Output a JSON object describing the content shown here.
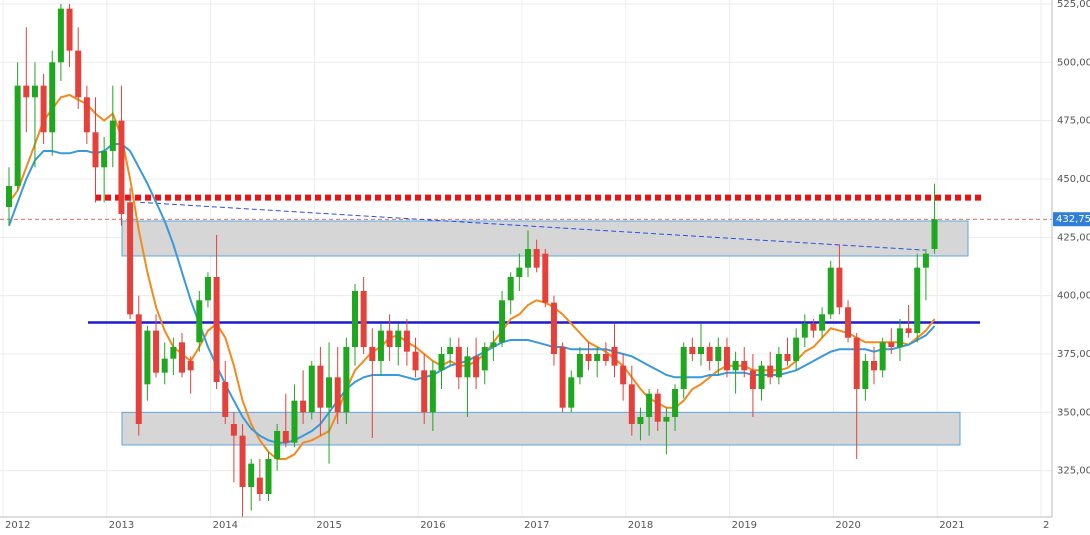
{
  "chart_data": {
    "type": "candlestick",
    "categories": [
      "2012",
      null,
      null,
      null,
      null,
      null,
      null,
      null,
      null,
      null,
      null,
      null,
      "2013",
      null,
      null,
      null,
      null,
      null,
      null,
      null,
      null,
      null,
      null,
      null,
      "2014",
      null,
      null,
      null,
      null,
      null,
      null,
      null,
      null,
      null,
      null,
      null,
      "2015",
      null,
      null,
      null,
      null,
      null,
      null,
      null,
      null,
      null,
      null,
      null,
      "2016",
      null,
      null,
      null,
      null,
      null,
      null,
      null,
      null,
      null,
      null,
      null,
      "2017",
      null,
      null,
      null,
      null,
      null,
      null,
      null,
      null,
      null,
      null,
      null,
      "2018",
      null,
      null,
      null,
      null,
      null,
      null,
      null,
      null,
      null,
      null,
      null,
      "2019",
      null,
      null,
      null,
      null,
      null,
      null,
      null,
      null,
      null,
      null,
      null,
      "2020",
      null,
      null,
      null,
      null,
      null,
      null,
      null,
      null,
      null,
      null,
      null,
      "2021",
      null,
      null,
      null,
      null,
      null,
      null,
      null,
      null,
      null,
      null,
      null,
      "2"
    ],
    "open": [
      438,
      447,
      490,
      485,
      490,
      470,
      500,
      523,
      505,
      485,
      470,
      455,
      462,
      475,
      440,
      392,
      362,
      385,
      367,
      373,
      380,
      372,
      380,
      398,
      408,
      363,
      345,
      340,
      318,
      322,
      315,
      330,
      342,
      337,
      355,
      350,
      370,
      352,
      365,
      350,
      378,
      402,
      378,
      372,
      385,
      378,
      385,
      376,
      368,
      350,
      368,
      375,
      378,
      365,
      374,
      368,
      378,
      380,
      398,
      408,
      412,
      420,
      418,
      397,
      378,
      352,
      365,
      375,
      372,
      375,
      378,
      370,
      362,
      345,
      348,
      358,
      346,
      348,
      360,
      378,
      375,
      378,
      372,
      378,
      368,
      372,
      368,
      360,
      370,
      365,
      375,
      372,
      382,
      388,
      385,
      392,
      412,
      395,
      382,
      360,
      372,
      368,
      380,
      378,
      386,
      384,
      412,
      420,
      null,
      null,
      null,
      null,
      null,
      null,
      null,
      null,
      null,
      null,
      null,
      null,
      null
    ],
    "high": [
      455,
      500,
      515,
      500,
      495,
      505,
      525,
      525,
      515,
      490,
      485,
      468,
      490,
      490,
      446,
      400,
      387,
      392,
      380,
      382,
      384,
      374,
      402,
      410,
      426,
      372,
      350,
      345,
      330,
      330,
      333,
      345,
      358,
      362,
      368,
      372,
      378,
      380,
      378,
      382,
      405,
      408,
      386,
      388,
      392,
      388,
      390,
      382,
      375,
      372,
      378,
      382,
      382,
      378,
      382,
      380,
      385,
      402,
      410,
      418,
      428,
      424,
      420,
      400,
      380,
      368,
      378,
      380,
      378,
      380,
      388,
      375,
      370,
      352,
      360,
      360,
      352,
      362,
      380,
      382,
      388,
      380,
      382,
      382,
      376,
      378,
      375,
      372,
      376,
      378,
      382,
      386,
      392,
      390,
      395,
      415,
      422,
      398,
      384,
      375,
      378,
      382,
      386,
      390,
      396,
      418,
      420,
      448,
      null,
      null,
      null,
      null,
      null,
      null,
      null,
      null,
      null,
      null,
      null,
      null,
      null
    ],
    "low": [
      430,
      445,
      470,
      455,
      465,
      460,
      492,
      498,
      480,
      465,
      440,
      440,
      455,
      430,
      390,
      340,
      355,
      365,
      362,
      366,
      365,
      358,
      376,
      395,
      360,
      345,
      320,
      305,
      308,
      312,
      312,
      325,
      335,
      335,
      345,
      347,
      340,
      328,
      345,
      345,
      370,
      375,
      339,
      366,
      372,
      370,
      370,
      365,
      345,
      342,
      360,
      370,
      360,
      348,
      360,
      362,
      372,
      378,
      392,
      402,
      408,
      410,
      395,
      370,
      350,
      350,
      362,
      368,
      365,
      370,
      365,
      355,
      340,
      338,
      340,
      342,
      332,
      342,
      356,
      372,
      370,
      368,
      366,
      365,
      358,
      365,
      348,
      355,
      362,
      362,
      370,
      368,
      378,
      382,
      382,
      390,
      392,
      380,
      330,
      355,
      362,
      365,
      375,
      372,
      382,
      380,
      398,
      418,
      null,
      null,
      null,
      null,
      null,
      null,
      null,
      null,
      null,
      null,
      null,
      null,
      null
    ],
    "close": [
      447,
      490,
      485,
      490,
      470,
      500,
      523,
      505,
      485,
      470,
      455,
      462,
      475,
      435,
      392,
      345,
      385,
      367,
      373,
      378,
      367,
      368,
      398,
      408,
      363,
      348,
      340,
      318,
      328,
      315,
      330,
      342,
      337,
      355,
      350,
      370,
      352,
      365,
      350,
      378,
      402,
      378,
      372,
      385,
      378,
      385,
      376,
      368,
      350,
      368,
      375,
      378,
      365,
      374,
      365,
      378,
      380,
      398,
      408,
      412,
      420,
      412,
      397,
      375,
      352,
      365,
      375,
      372,
      375,
      372,
      370,
      362,
      345,
      348,
      358,
      346,
      348,
      360,
      378,
      375,
      378,
      372,
      378,
      368,
      372,
      368,
      360,
      370,
      365,
      375,
      372,
      382,
      388,
      385,
      392,
      412,
      395,
      382,
      360,
      372,
      368,
      380,
      378,
      386,
      384,
      412,
      418,
      432.75,
      null,
      null,
      null,
      null,
      null,
      null,
      null,
      null,
      null,
      null,
      null,
      null,
      null
    ],
    "up_color": "#1fa71f",
    "down_color": "#e5403a",
    "moving_averages": [
      {
        "color": "#f28a1e",
        "values": [
          440,
          445,
          455,
          465,
          475,
          480,
          485,
          486,
          484,
          482,
          478,
          475,
          478,
          468,
          450,
          428,
          410,
          395,
          385,
          378,
          375,
          372,
          378,
          385,
          388,
          382,
          370,
          355,
          345,
          338,
          333,
          330,
          330,
          332,
          337,
          338,
          340,
          342,
          350,
          360,
          368,
          372,
          376,
          378,
          382,
          383,
          380,
          378,
          375,
          372,
          370,
          372,
          370,
          370,
          372,
          375,
          380,
          385,
          390,
          392,
          396,
          398,
          397,
          395,
          392,
          388,
          384,
          380,
          378,
          376,
          373,
          370,
          365,
          360,
          356,
          354,
          352,
          352,
          355,
          360,
          362,
          365,
          368,
          370,
          370,
          370,
          368,
          368,
          368,
          368,
          369,
          372,
          376,
          378,
          382,
          386,
          385,
          384,
          382,
          380,
          380,
          380,
          380,
          380,
          379,
          382,
          385,
          390,
          null,
          null,
          null,
          null,
          null,
          null,
          null,
          null,
          null,
          null,
          null,
          null,
          null
        ]
      },
      {
        "color": "#3a9ad9",
        "values": [
          430,
          440,
          450,
          458,
          462,
          462,
          461,
          461,
          462,
          462,
          461,
          462,
          465,
          465,
          462,
          455,
          448,
          440,
          432,
          422,
          410,
          398,
          388,
          378,
          370,
          362,
          355,
          348,
          343,
          340,
          338,
          337,
          337,
          338,
          340,
          342,
          345,
          350,
          355,
          360,
          363,
          365,
          366,
          366,
          366,
          366,
          365,
          364,
          365,
          366,
          368,
          370,
          371,
          372,
          374,
          376,
          378,
          380,
          381,
          381,
          381,
          380,
          379,
          378,
          378,
          377,
          377,
          377,
          377,
          377,
          376,
          375,
          374,
          372,
          370,
          368,
          366,
          365,
          365,
          365,
          365,
          366,
          366,
          367,
          367,
          367,
          366,
          366,
          366,
          366,
          367,
          368,
          370,
          372,
          374,
          376,
          377,
          377,
          377,
          377,
          376,
          377,
          377,
          378,
          379,
          381,
          383,
          387,
          null,
          null,
          null,
          null,
          null,
          null,
          null,
          null,
          null,
          null,
          null,
          null,
          null
        ]
      }
    ],
    "resistance": {
      "value": 442,
      "color": "#ee1111"
    },
    "support": {
      "value": 388.5,
      "color": "#1a1ad0"
    },
    "trendline": {
      "values": [
        440,
        419.5
      ],
      "color": "#2b4fe0"
    },
    "zones": [
      [
        417,
        432
      ],
      [
        336,
        350
      ]
    ],
    "last_price": {
      "value": 432.75,
      "label": "432,75"
    },
    "ylim": [
      306,
      526.7
    ],
    "yticks": [
      {
        "value": 325,
        "label": "325,00"
      },
      {
        "value": 350,
        "label": "350,00"
      },
      {
        "value": 375,
        "label": "375,00"
      },
      {
        "value": 400,
        "label": "400,00"
      },
      {
        "value": 425,
        "label": "425,00"
      },
      {
        "value": 450,
        "label": "450,00"
      },
      {
        "value": 475,
        "label": "475,00"
      },
      {
        "value": 500,
        "label": "500,00"
      },
      {
        "value": 525,
        "label": "525,00"
      }
    ],
    "grid": true
  }
}
